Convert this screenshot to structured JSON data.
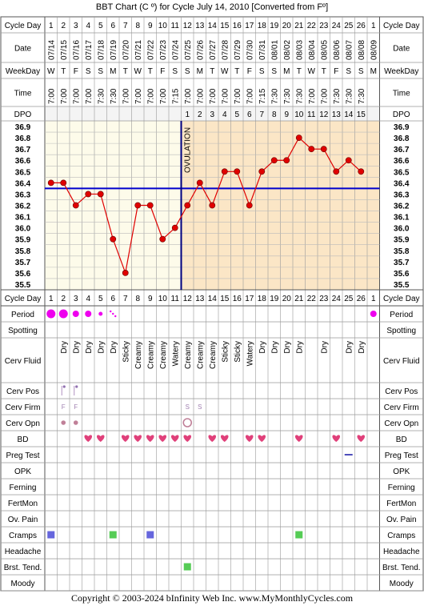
{
  "title": "BBT Chart (C º) for Cycle July 14, 2010  [Converted from Fº]",
  "copyright": "Copyright © 2003-2024 bInfinity Web Inc.     www.MyMonthlyCycles.com",
  "labels": {
    "cycle_day": "Cycle Day",
    "date": "Date",
    "weekday": "WeekDay",
    "time": "Time",
    "dpo": "DPO",
    "ovulation": "OVULATION",
    "rows": [
      "Period",
      "Spotting",
      "Cerv Fluid",
      "Cerv Pos",
      "Cerv Firm",
      "Cerv Opn",
      "BD",
      "Preg Test",
      "OPK",
      "Ferning",
      "FertMon",
      "Ov. Pain",
      "Cramps",
      "Headache",
      "Brst. Tend.",
      "Moody"
    ]
  },
  "colors": {
    "coverline": "#0000cc",
    "ovulation_line": "#000080",
    "temp_line": "#e00000",
    "point_fill": "#e00000",
    "pre_ovulation_bg": "#fdfbea",
    "post_ovulation_bg": "#fbe6c6",
    "period_dot": "#ee00ee",
    "heart": "#e0407a",
    "cramps_early": "#6666dd",
    "cramps_late": "#55cc55",
    "brst_tend": "#55cc55",
    "preg_test": "#2222aa"
  },
  "chart_data": {
    "type": "line",
    "cycle_days": [
      1,
      2,
      3,
      4,
      5,
      6,
      7,
      8,
      9,
      10,
      11,
      12,
      13,
      14,
      15,
      16,
      17,
      18,
      19,
      20,
      21,
      22,
      23,
      24,
      25,
      26,
      1
    ],
    "dates": [
      "07/14",
      "07/15",
      "07/16",
      "07/17",
      "07/18",
      "07/19",
      "07/20",
      "07/21",
      "07/22",
      "07/23",
      "07/24",
      "07/25",
      "07/26",
      "07/27",
      "07/28",
      "07/29",
      "07/30",
      "07/31",
      "08/01",
      "08/02",
      "08/03",
      "08/04",
      "08/05",
      "08/06",
      "08/07",
      "08/08",
      "08/09"
    ],
    "weekdays": [
      "W",
      "T",
      "F",
      "S",
      "S",
      "M",
      "T",
      "W",
      "T",
      "F",
      "S",
      "S",
      "M",
      "T",
      "W",
      "T",
      "F",
      "S",
      "S",
      "M",
      "T",
      "W",
      "T",
      "F",
      "S",
      "S",
      "M"
    ],
    "times": [
      "7:00",
      "7:00",
      "7:00",
      "7:00",
      "7:30",
      "7:30",
      "7:00",
      "7:00",
      "7:00",
      "7:00",
      "7:15",
      "7:00",
      "7:00",
      "7:00",
      "7:00",
      "7:00",
      "7:00",
      "7:15",
      "7:30",
      "7:30",
      "7:30",
      "7:00",
      "7:00",
      "7:30",
      "7:30",
      "7:30",
      ""
    ],
    "dpo": [
      "",
      "",
      "",
      "",
      "",
      "",
      "",
      "",
      "",
      "",
      "",
      "1",
      "2",
      "3",
      "4",
      "5",
      "6",
      "7",
      "8",
      "9",
      "10",
      "11",
      "12",
      "13",
      "14",
      "15",
      ""
    ],
    "temps": [
      36.4,
      36.4,
      36.2,
      36.3,
      36.3,
      35.9,
      35.6,
      36.2,
      36.2,
      35.9,
      36.0,
      36.2,
      36.4,
      36.2,
      36.5,
      36.5,
      36.2,
      36.5,
      36.6,
      36.6,
      36.8,
      36.7,
      36.7,
      36.5,
      36.6,
      36.5,
      null
    ],
    "y_ticks": [
      "36.9",
      "36.8",
      "36.7",
      "36.6",
      "36.5",
      "36.4",
      "36.3",
      "36.2",
      "36.1",
      "36.0",
      "35.9",
      "35.8",
      "35.7",
      "35.6",
      "35.5"
    ],
    "ylim": [
      35.5,
      36.9
    ],
    "coverline": 36.35,
    "ovulation_after_day": 11,
    "period": [
      "large",
      "large",
      "medium",
      "medium",
      "small",
      "spot",
      "",
      "",
      "",
      "",
      "",
      "",
      "",
      "",
      "",
      "",
      "",
      "",
      "",
      "",
      "",
      "",
      "",
      "",
      "",
      "",
      "medium"
    ],
    "spotting": [
      "",
      "",
      "",
      "",
      "",
      "",
      "",
      "",
      "",
      "",
      "",
      "",
      "",
      "",
      "",
      "",
      "",
      "",
      "",
      "",
      "",
      "",
      "",
      "",
      "",
      "",
      ""
    ],
    "cerv_fluid": [
      "",
      "Dry",
      "Dry",
      "Dry",
      "Dry",
      "Dry",
      "Sticky",
      "Creamy",
      "Creamy",
      "Creamy",
      "Watery",
      "Creamy",
      "Creamy",
      "Creamy",
      "Sticky",
      "Sticky",
      "Watery",
      "Dry",
      "Dry",
      "Dry",
      "Dry",
      "",
      "Dry",
      "",
      "Dry",
      "Dry",
      ""
    ],
    "cerv_pos": [
      "",
      "high",
      "high",
      "",
      "",
      "",
      "",
      "",
      "",
      "",
      "",
      "",
      "",
      "",
      "",
      "",
      "",
      "",
      "",
      "",
      "",
      "",
      "",
      "",
      "",
      "",
      ""
    ],
    "cerv_firm": [
      "",
      "F",
      "F",
      "",
      "",
      "",
      "",
      "",
      "",
      "",
      "",
      "S",
      "S",
      "",
      "",
      "",
      "",
      "",
      "",
      "",
      "",
      "",
      "",
      "",
      "",
      "",
      ""
    ],
    "cerv_opn": [
      "",
      "small",
      "small",
      "",
      "",
      "",
      "",
      "",
      "",
      "",
      "",
      "open",
      "",
      "",
      "",
      "",
      "",
      "",
      "",
      "",
      "",
      "",
      "",
      "",
      "",
      "",
      ""
    ],
    "bd": [
      0,
      0,
      0,
      1,
      1,
      0,
      1,
      1,
      1,
      1,
      1,
      1,
      0,
      1,
      1,
      0,
      1,
      1,
      0,
      0,
      1,
      0,
      0,
      1,
      0,
      1,
      0
    ],
    "preg_test": [
      "",
      "",
      "",
      "",
      "",
      "",
      "",
      "",
      "",
      "",
      "",
      "",
      "",
      "",
      "",
      "",
      "",
      "",
      "",
      "",
      "",
      "",
      "",
      "",
      "neg",
      "",
      ""
    ],
    "opk": [
      "",
      "",
      "",
      "",
      "",
      "",
      "",
      "",
      "",
      "",
      "",
      "",
      "",
      "",
      "",
      "",
      "",
      "",
      "",
      "",
      "",
      "",
      "",
      "",
      "",
      "",
      ""
    ],
    "ferning": [
      "",
      "",
      "",
      "",
      "",
      "",
      "",
      "",
      "",
      "",
      "",
      "",
      "",
      "",
      "",
      "",
      "",
      "",
      "",
      "",
      "",
      "",
      "",
      "",
      "",
      "",
      ""
    ],
    "fertmon": [
      "",
      "",
      "",
      "",
      "",
      "",
      "",
      "",
      "",
      "",
      "",
      "",
      "",
      "",
      "",
      "",
      "",
      "",
      "",
      "",
      "",
      "",
      "",
      "",
      "",
      "",
      ""
    ],
    "ov_pain": [
      "",
      "",
      "",
      "",
      "",
      "",
      "",
      "",
      "",
      "",
      "",
      "",
      "",
      "",
      "",
      "",
      "",
      "",
      "",
      "",
      "",
      "",
      "",
      "",
      "",
      "",
      ""
    ],
    "cramps": [
      1,
      0,
      0,
      0,
      0,
      1,
      0,
      0,
      1,
      0,
      0,
      0,
      0,
      0,
      0,
      0,
      0,
      0,
      0,
      0,
      1,
      0,
      0,
      0,
      0,
      0,
      0
    ],
    "headache": [
      "",
      "",
      "",
      "",
      "",
      "",
      "",
      "",
      "",
      "",
      "",
      "",
      "",
      "",
      "",
      "",
      "",
      "",
      "",
      "",
      "",
      "",
      "",
      "",
      "",
      "",
      ""
    ],
    "brst_tend": [
      0,
      0,
      0,
      0,
      0,
      0,
      0,
      0,
      0,
      0,
      0,
      1,
      0,
      0,
      0,
      0,
      0,
      0,
      0,
      0,
      0,
      0,
      0,
      0,
      0,
      0,
      0
    ],
    "moody": [
      "",
      "",
      "",
      "",
      "",
      "",
      "",
      "",
      "",
      "",
      "",
      "",
      "",
      "",
      "",
      "",
      "",
      "",
      "",
      "",
      "",
      "",
      "",
      "",
      "",
      "",
      ""
    ]
  }
}
